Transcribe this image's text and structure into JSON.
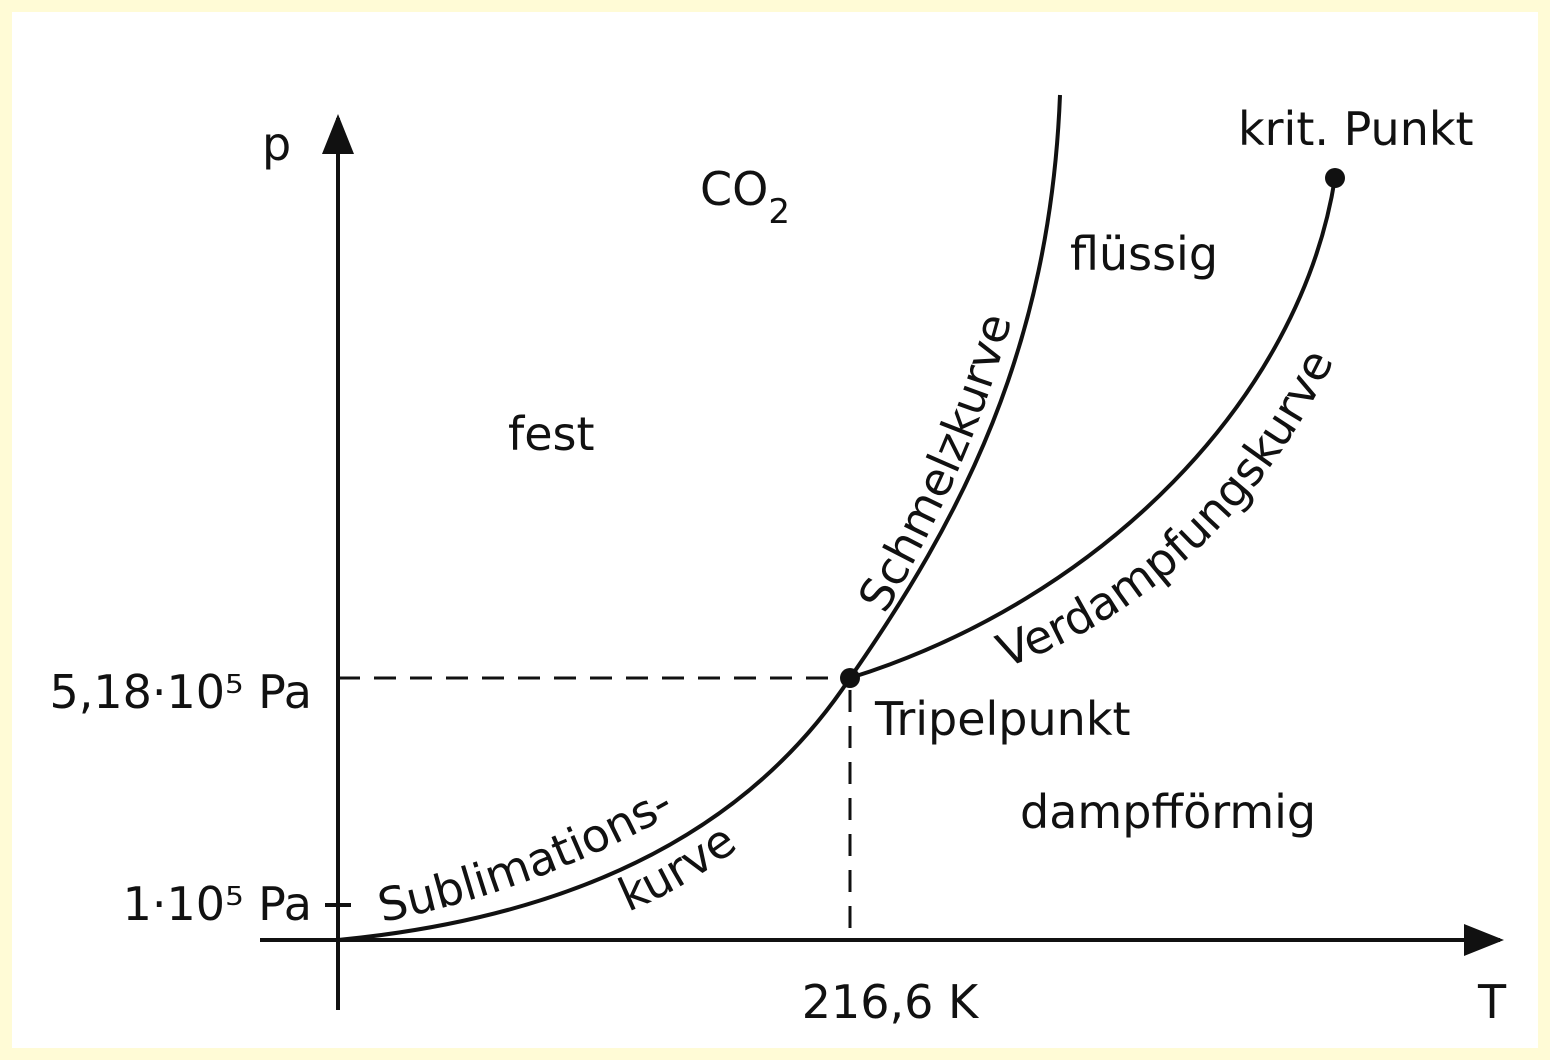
{
  "axes": {
    "y_label": "p",
    "x_label": "T"
  },
  "substance": {
    "formula": "CO",
    "subscript": "2"
  },
  "ticks": {
    "y_upper": "5,18·10⁵ Pa",
    "y_lower": "1·10⁵ Pa",
    "x": "216,6 K"
  },
  "regions": {
    "solid": "fest",
    "liquid": "flüssig",
    "gas": "dampfförmig"
  },
  "curves": {
    "melting": "Schmelzkurve",
    "vaporization": "Verdampfungskurve",
    "sublimation_1": "Sublimations-",
    "sublimation_2": "kurve"
  },
  "points": {
    "critical": "krit. Punkt",
    "triple": "Tripelpunkt"
  }
}
